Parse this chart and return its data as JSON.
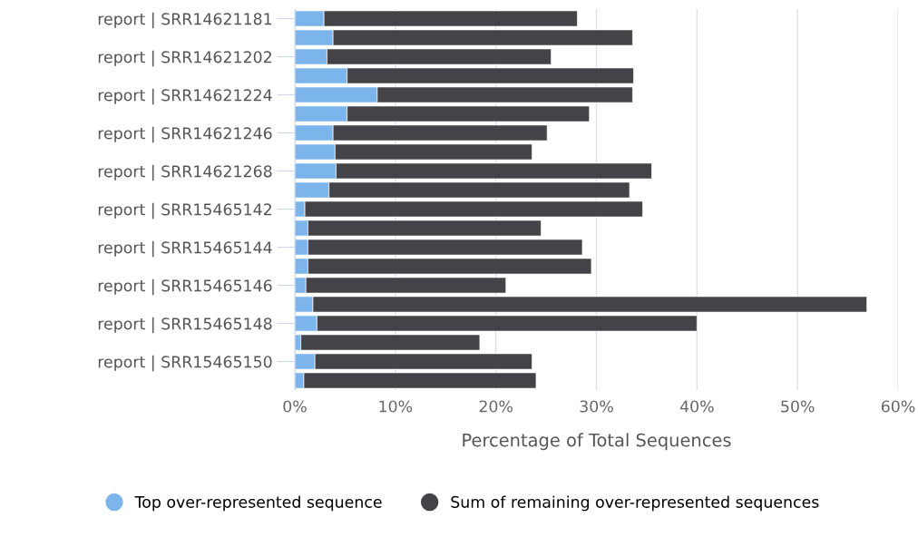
{
  "chart_data": {
    "type": "bar",
    "orientation": "horizontal",
    "stacked": true,
    "xlabel": "Percentage of Total Sequences",
    "categories": [
      "report | SRR14621181",
      null,
      "report | SRR14621202",
      null,
      "report | SRR14621224",
      null,
      "report | SRR14621246",
      null,
      "report | SRR14621268",
      null,
      "report | SRR15465142",
      null,
      "report | SRR15465144",
      null,
      "report | SRR15465146",
      null,
      "report | SRR15465148",
      null,
      "report | SRR15465150",
      null
    ],
    "series": [
      {
        "name": "Top over-represented sequence",
        "color": "#7cb5ec",
        "values": [
          2.9,
          3.8,
          3.2,
          5.2,
          8.2,
          5.2,
          3.8,
          4.0,
          4.1,
          3.4,
          1.0,
          1.3,
          1.3,
          1.3,
          1.1,
          1.8,
          2.2,
          0.6,
          2.0,
          0.9
        ]
      },
      {
        "name": "Sum of remaining over-represented sequences",
        "color": "#434348",
        "values": [
          25.2,
          29.8,
          22.3,
          28.5,
          25.4,
          24.1,
          21.3,
          19.6,
          31.4,
          29.9,
          33.6,
          23.2,
          27.3,
          28.2,
          19.9,
          55.1,
          37.8,
          17.8,
          21.6,
          23.1
        ]
      }
    ],
    "xlim": [
      0,
      60
    ],
    "xticks": [
      {
        "value": 0,
        "label": "0%"
      },
      {
        "value": 10,
        "label": "10%"
      },
      {
        "value": 20,
        "label": "20%"
      },
      {
        "value": 30,
        "label": "30%"
      },
      {
        "value": 40,
        "label": "40%"
      },
      {
        "value": 50,
        "label": "50%"
      },
      {
        "value": 60,
        "label": "60%"
      }
    ],
    "grid": "x",
    "legend": "bottom"
  }
}
